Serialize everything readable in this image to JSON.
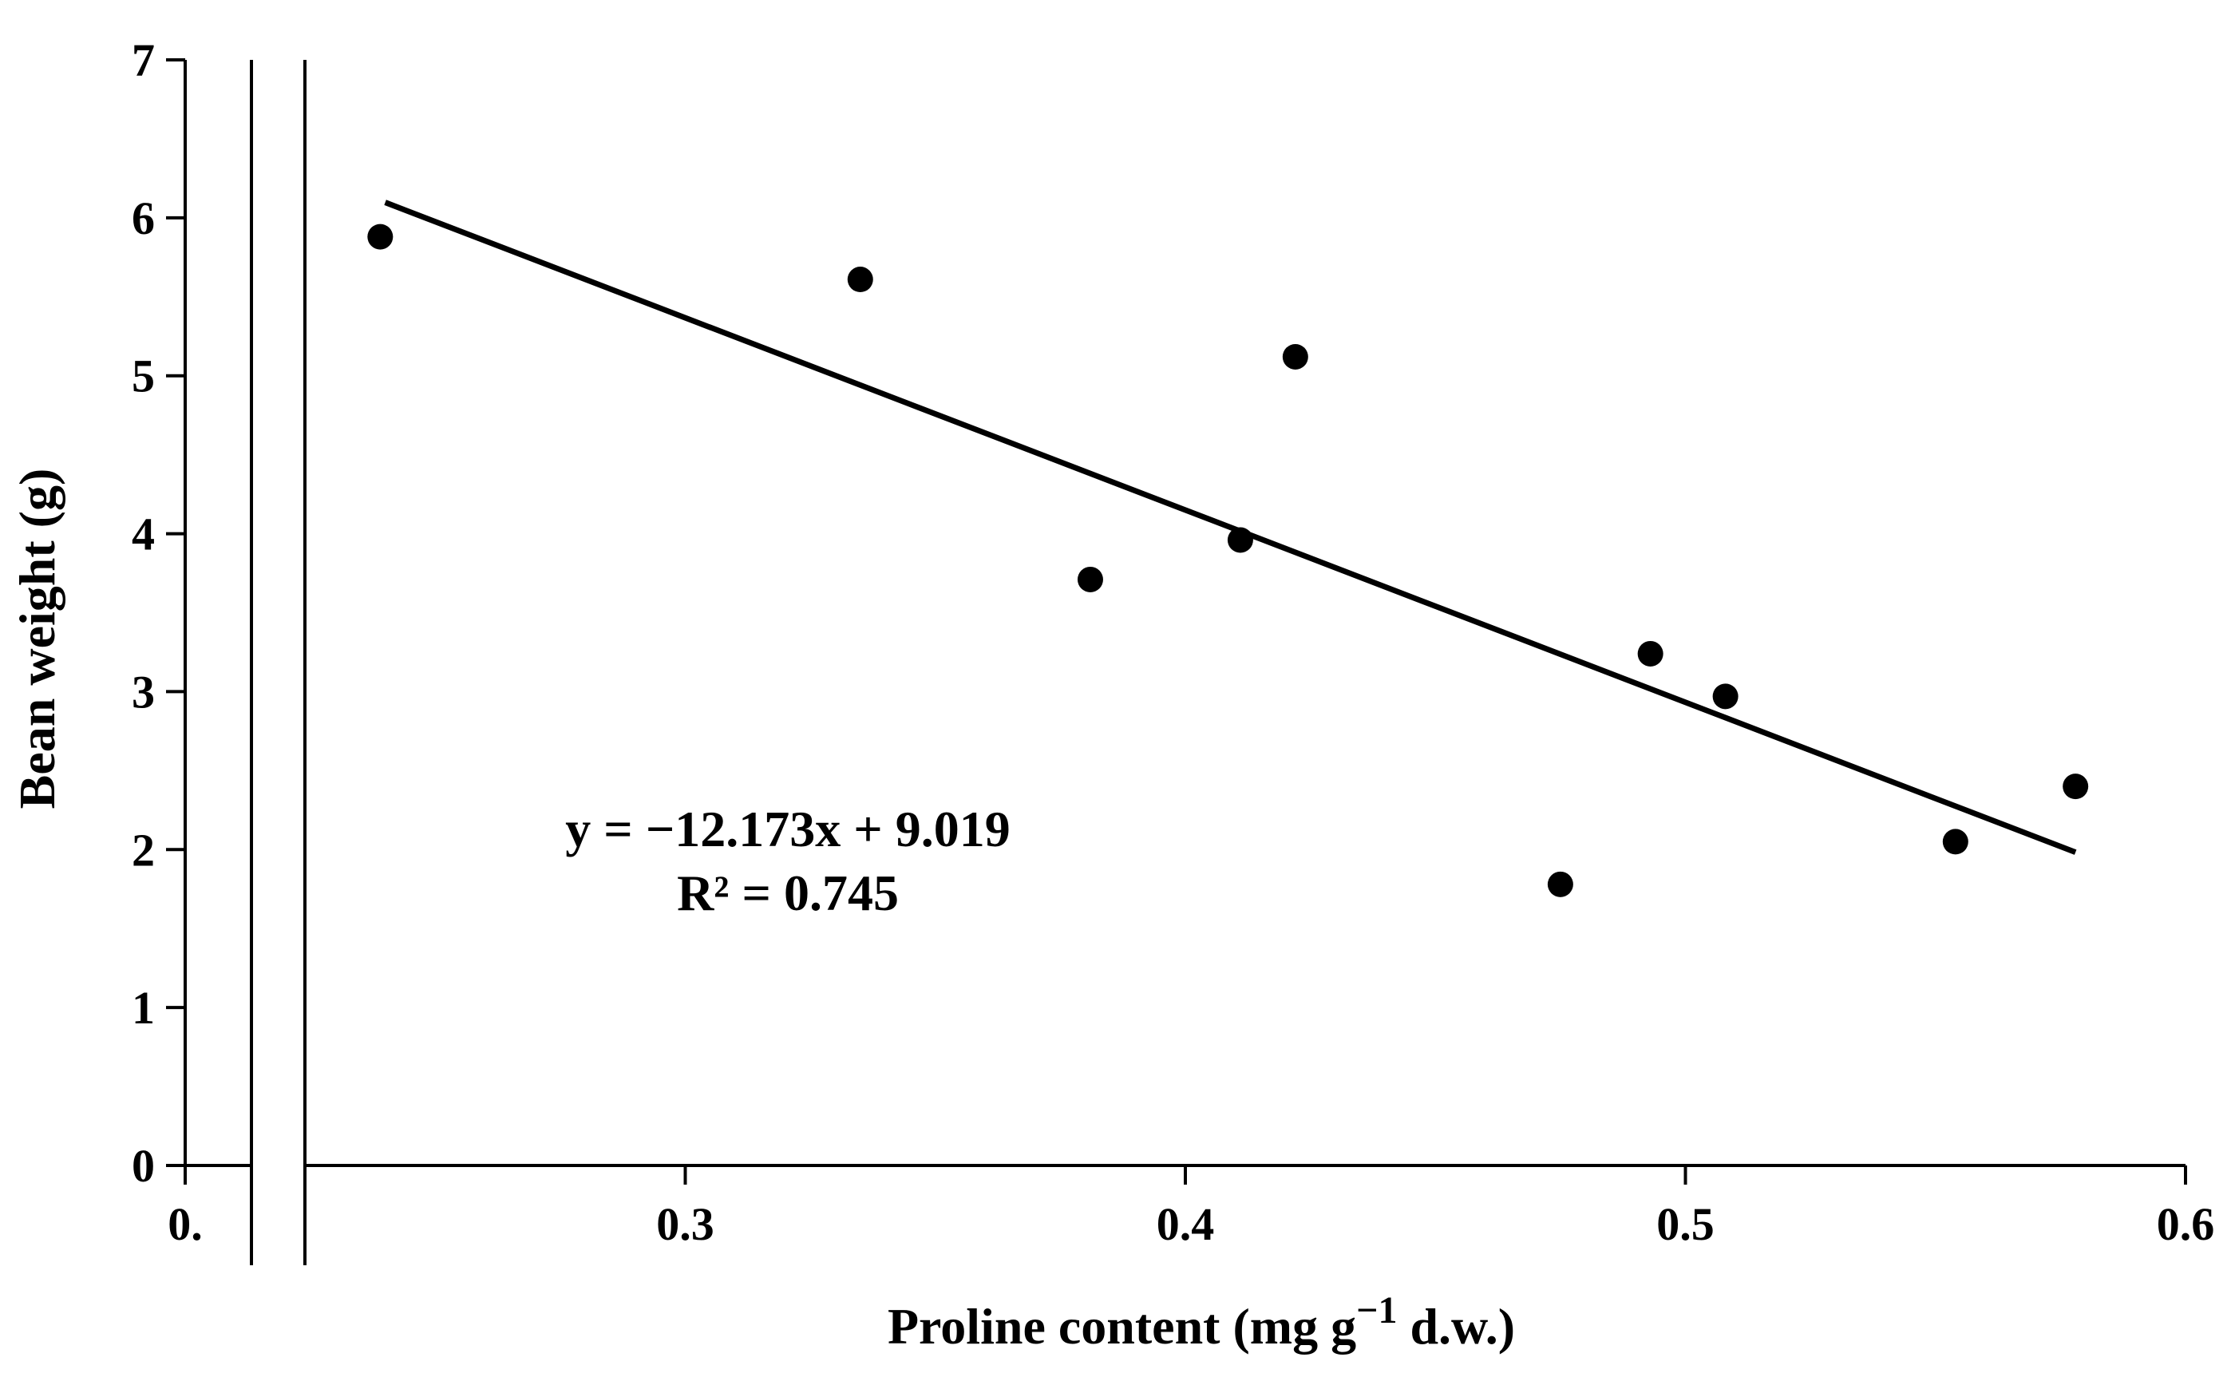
{
  "chart_data": {
    "type": "scatter",
    "title": "",
    "xlabel": "Proline content (mg g",
    "xlabel_superscript": "−1",
    "xlabel_suffix": " d.w.)",
    "ylabel": "Bean weight (g)",
    "xlim": [
      0.2,
      0.6
    ],
    "ylim": [
      0,
      7
    ],
    "x_tick_labels": [
      "0.",
      "0.3",
      "0.4",
      "0.5",
      "0.6"
    ],
    "x_ticks": [
      0.2,
      0.3,
      0.4,
      0.5,
      0.6
    ],
    "y_ticks": [
      0,
      1,
      2,
      3,
      4,
      5,
      6,
      7
    ],
    "y_tick_labels": [
      "0",
      "1",
      "2",
      "3",
      "4",
      "5",
      "6",
      "7"
    ],
    "grid": false,
    "axis_break": true,
    "points": [
      {
        "x": 0.239,
        "y": 5.88
      },
      {
        "x": 0.335,
        "y": 5.61
      },
      {
        "x": 0.381,
        "y": 3.71
      },
      {
        "x": 0.411,
        "y": 3.96
      },
      {
        "x": 0.422,
        "y": 5.12
      },
      {
        "x": 0.475,
        "y": 1.78
      },
      {
        "x": 0.493,
        "y": 3.24
      },
      {
        "x": 0.508,
        "y": 2.97
      },
      {
        "x": 0.554,
        "y": 2.05
      },
      {
        "x": 0.578,
        "y": 2.4
      }
    ],
    "trendline": {
      "slope": -12.173,
      "intercept": 9.019,
      "x_start": 0.24,
      "x_end": 0.578
    },
    "annotations": {
      "equation": "y = −12.173x + 9.019",
      "r_squared": "R² = 0.745"
    }
  }
}
